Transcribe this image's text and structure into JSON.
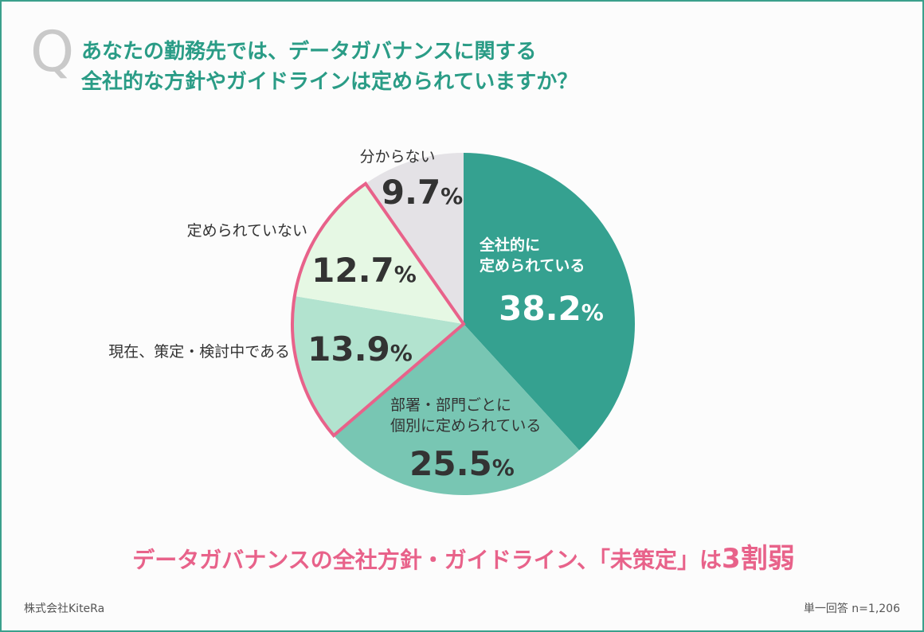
{
  "question": {
    "mark": "Q",
    "line1": "あなたの勤務先では、データガバナンスに関する",
    "line2": "全社的な方針やガイドラインは定められていますか？"
  },
  "chart_data": {
    "type": "pie",
    "slices": [
      {
        "label_lines": [
          "全社的に",
          "定められている"
        ],
        "value": 38.2,
        "display": "38.2",
        "color": "#35a190",
        "label_color": "#ffffff",
        "value_color": "#ffffff",
        "outside": false,
        "highlight": false
      },
      {
        "label_lines": [
          "部署・部門ごとに",
          "個別に定められている"
        ],
        "value": 25.5,
        "display": "25.5",
        "color": "#78c6b3",
        "label_color": "#333333",
        "value_color": "#333333",
        "outside": false,
        "highlight": false
      },
      {
        "label_lines": [
          "現在、策定・検討中である"
        ],
        "value": 13.9,
        "display": "13.9",
        "color": "#b2e3cf",
        "label_color": "#333333",
        "value_color": "#333333",
        "outside": true,
        "highlight": true
      },
      {
        "label_lines": [
          "定められていない"
        ],
        "value": 12.7,
        "display": "12.7",
        "color": "#e6f8e4",
        "label_color": "#333333",
        "value_color": "#333333",
        "outside": true,
        "highlight": true
      },
      {
        "label_lines": [
          "分からない"
        ],
        "value": 9.7,
        "display": "9.7",
        "color": "#e4e2e6",
        "label_color": "#333333",
        "value_color": "#333333",
        "outside": true,
        "highlight": false
      }
    ],
    "unit": "%",
    "highlight_color": "#e8628a"
  },
  "headline": {
    "main": "データガバナンスの全社方針・ガイドライン、「未策定」は",
    "emphasis": "3割弱"
  },
  "footer": {
    "company": "株式会社KiteRa",
    "note": "単一回答 n=1,206"
  }
}
